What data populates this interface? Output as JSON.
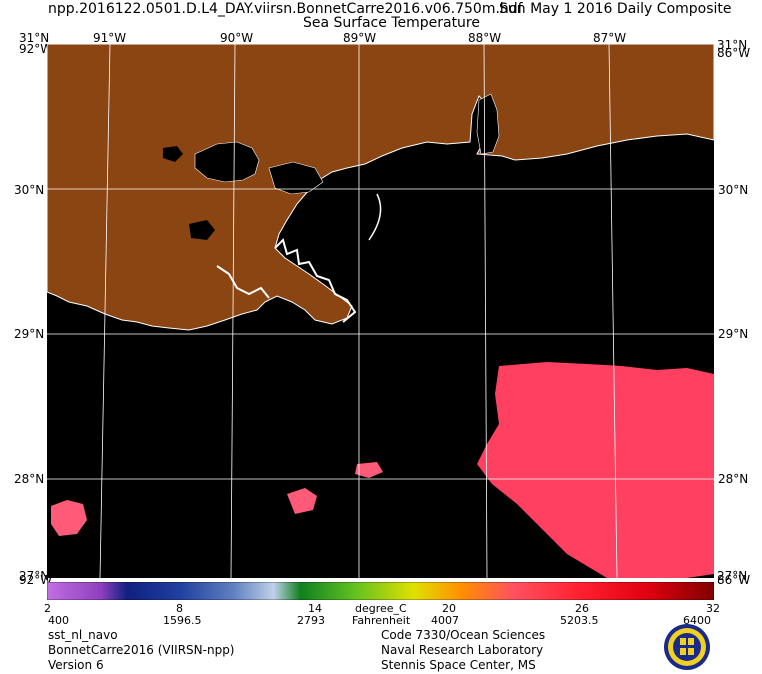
{
  "header": {
    "filename": "npp.2016122.0501.D.L4_DAY.viirsn.BonnetCarre2016.v06.750m.hdf",
    "date_text": "Sun May  1 2016 Daily Composite",
    "product_title": "Sea Surface Temperature"
  },
  "axes": {
    "lon_top": [
      "91°W",
      "90°W",
      "89°W",
      "88°W",
      "87°W"
    ],
    "lat_left": [
      "30°N",
      "29°N",
      "28°N"
    ],
    "lat_right": [
      "30°N",
      "29°N",
      "28°N"
    ],
    "corner_top_left": "31°N",
    "corner_top_left_lon": "92°W",
    "corner_top_right": "31°N",
    "corner_top_right_lon": "86°W",
    "corner_bottom_left": "27°N",
    "corner_bottom_left_lon": "92°W",
    "corner_bottom_right": "27°N",
    "corner_bottom_right_lon": "86°W"
  },
  "colorbar": {
    "celsius_ticks": [
      "2",
      "8",
      "14",
      "20",
      "26",
      "32"
    ],
    "fahrenheit_ticks": [
      "400",
      "1596.5",
      "2793",
      "4007",
      "5203.5",
      "6400"
    ],
    "unit_c": "degree_C",
    "unit_f": "Fahrenheit",
    "colors": [
      "#c070e0",
      "#9040c0",
      "#102080",
      "#2040a0",
      "#6080c0",
      "#c0d0e8",
      "#108020",
      "#60c020",
      "#e0e000",
      "#ff9000",
      "#ff5060",
      "#ff2030",
      "#e00010",
      "#800000"
    ]
  },
  "footer": {
    "left_line1": "sst_nl_navo",
    "left_line2": "BonnetCarre2016 (VIIRSN-npp)",
    "left_line3": "Version 6",
    "right_line1": "Code 7330/Ocean Sciences",
    "right_line2": "Naval Research Laboratory",
    "right_line3": "Stennis Space Center, MS"
  },
  "map_colors": {
    "land": "#8b4513",
    "ocean_no_data": "#000000",
    "warm_sst": "#ff4060",
    "grid": "#ffffff"
  }
}
